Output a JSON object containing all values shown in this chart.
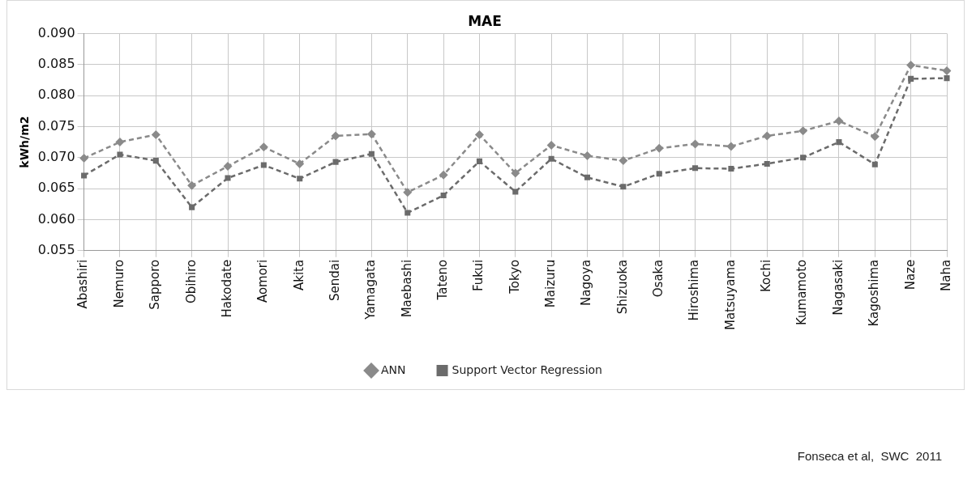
{
  "chart_data": {
    "type": "line",
    "title": "MAE",
    "ylabel": "kWh/m2",
    "categories": [
      "Abashiri",
      "Nemuro",
      "Sapporo",
      "Obihiro",
      "Hakodate",
      "Aomori",
      "Akita",
      "Sendai",
      "Yamagata",
      "Maebashi",
      "Tateno",
      "Fukui",
      "Tokyo",
      "Maizuru",
      "Nagoya",
      "Shizuoka",
      "Osaka",
      "Hiroshima",
      "Matsuyama",
      "Kochi",
      "Kumamoto",
      "Nagasaki",
      "Kagoshima",
      "Naze",
      "Naha"
    ],
    "series": [
      {
        "name": "ANN",
        "color": "#8a8a8a",
        "marker": "diamond",
        "values": [
          0.0699,
          0.0725,
          0.0737,
          0.0655,
          0.0686,
          0.0717,
          0.069,
          0.0735,
          0.0738,
          0.0644,
          0.0672,
          0.0737,
          0.0675,
          0.072,
          0.0703,
          0.0695,
          0.0715,
          0.0722,
          0.0718,
          0.0735,
          0.0743,
          0.0759,
          0.0734,
          0.0849,
          0.084
        ]
      },
      {
        "name": "Support Vector Regression",
        "color": "#6b6b6b",
        "marker": "square",
        "values": [
          0.0671,
          0.0705,
          0.0695,
          0.062,
          0.0667,
          0.0688,
          0.0666,
          0.0693,
          0.0706,
          0.0611,
          0.0639,
          0.0694,
          0.0645,
          0.0698,
          0.0668,
          0.0653,
          0.0674,
          0.0683,
          0.0682,
          0.069,
          0.07,
          0.0725,
          0.0689,
          0.0827,
          0.0828
        ]
      }
    ],
    "ylim": [
      0.055,
      0.09
    ],
    "yticks": [
      0.055,
      {
        "value": 0.06,
        "label": "0.060"
      },
      0.065,
      {
        "value": 0.07,
        "label": "0.070"
      },
      0.075,
      {
        "value": 0.08,
        "label": "0.080"
      },
      0.085,
      {
        "value": 0.09,
        "label": "0.090"
      }
    ],
    "grid": true,
    "legend": "bottom",
    "line_style": "dashed",
    "annotations": [
      "Fonseca et al,  SWC  2011"
    ]
  }
}
